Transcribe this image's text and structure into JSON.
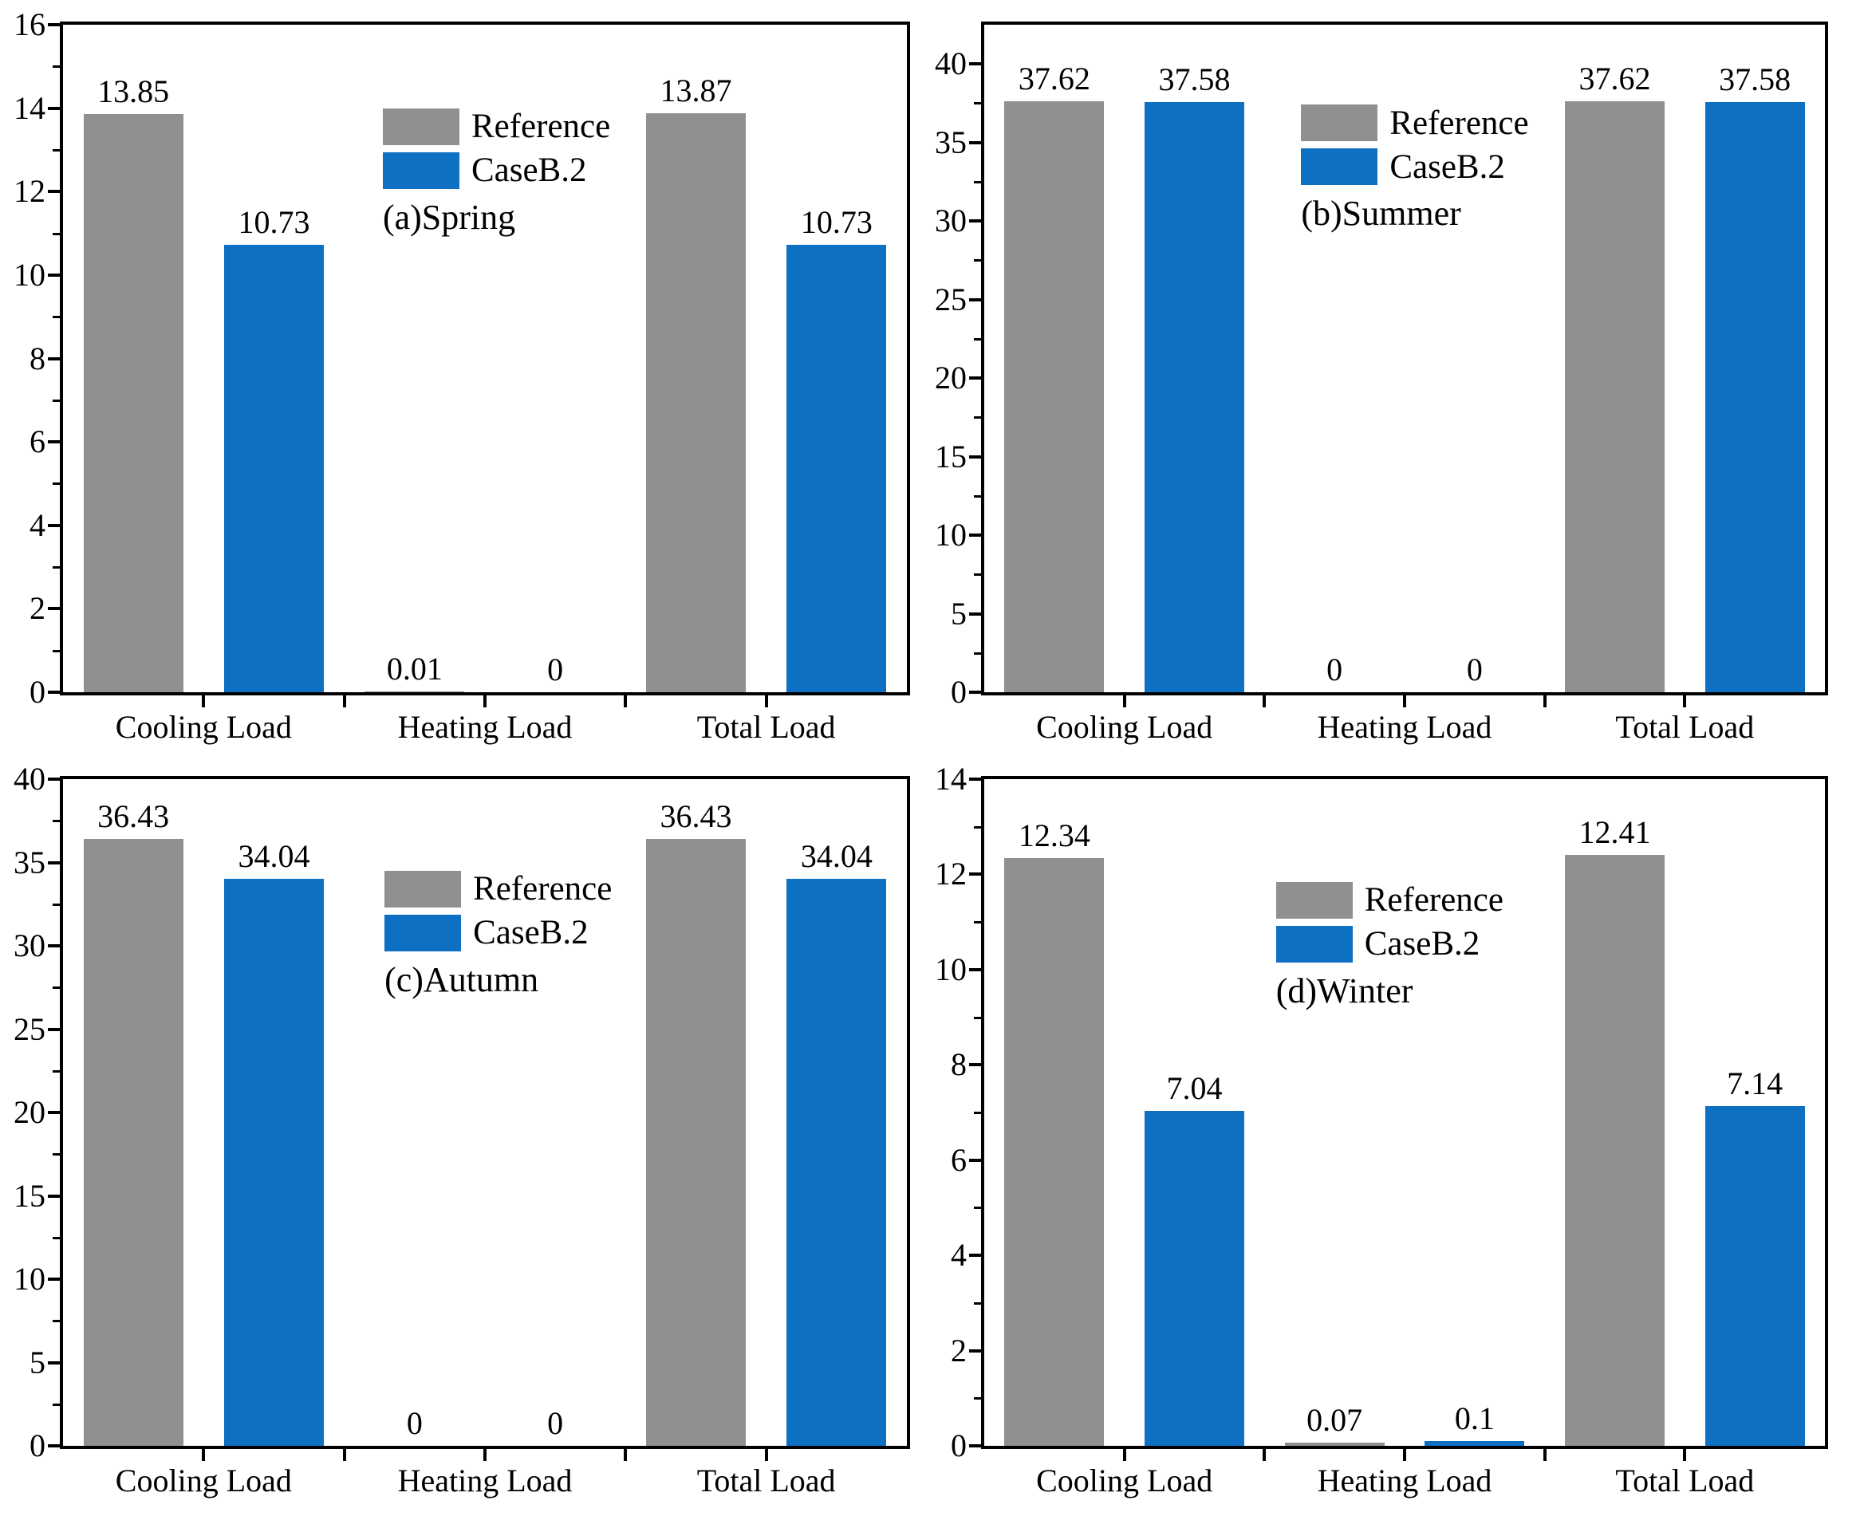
{
  "figure": {
    "background": "#ffffff",
    "text_color": "#000000",
    "axis_color": "#000000"
  },
  "palette": {
    "reference_gray": "#909090",
    "caseb2_blue": "#0d70c2"
  },
  "chart_data": [
    {
      "id": "a",
      "type": "bar",
      "tag": "(a)Spring",
      "categories": [
        "Cooling Load",
        "Heating Load",
        "Total Load"
      ],
      "series": [
        {
          "name": "Reference",
          "color": "#909090",
          "values": [
            13.85,
            0.01,
            13.87
          ],
          "labels": [
            "13.85",
            "0.01",
            "13.87"
          ]
        },
        {
          "name": "CaseB.2",
          "color": "#0d70c2",
          "values": [
            10.73,
            0,
            10.73
          ],
          "labels": [
            "10.73",
            "0",
            "10.73"
          ]
        }
      ],
      "yticks": [
        0,
        2,
        4,
        6,
        8,
        10,
        12,
        14,
        16
      ],
      "ylim": [
        0,
        16
      ],
      "legend_position": "inside-top",
      "grid": false
    },
    {
      "id": "b",
      "type": "bar",
      "tag": "(b)Summer",
      "categories": [
        "Cooling Load",
        "Heating Load",
        "Total Load"
      ],
      "series": [
        {
          "name": "Reference",
          "color": "#909090",
          "values": [
            37.62,
            0,
            37.62
          ],
          "labels": [
            "37.62",
            "0",
            "37.62"
          ]
        },
        {
          "name": "CaseB.2",
          "color": "#0d70c2",
          "values": [
            37.58,
            0,
            37.58
          ],
          "labels": [
            "37.58",
            "0",
            "37.58"
          ]
        }
      ],
      "yticks": [
        0,
        5,
        10,
        15,
        20,
        25,
        30,
        35,
        40
      ],
      "ylim": [
        0,
        42.5
      ],
      "legend_position": "inside-top",
      "grid": false
    },
    {
      "id": "c",
      "type": "bar",
      "tag": "(c)Autumn",
      "categories": [
        "Cooling Load",
        "Heating Load",
        "Total Load"
      ],
      "series": [
        {
          "name": "Reference",
          "color": "#909090",
          "values": [
            36.43,
            0,
            36.43
          ],
          "labels": [
            "36.43",
            "0",
            "36.43"
          ]
        },
        {
          "name": "CaseB.2",
          "color": "#0d70c2",
          "values": [
            34.04,
            0,
            34.04
          ],
          "labels": [
            "34.04",
            "0",
            "34.04"
          ]
        }
      ],
      "yticks": [
        0,
        5,
        10,
        15,
        20,
        25,
        30,
        35,
        40
      ],
      "ylim": [
        0,
        40
      ],
      "legend_position": "inside-top",
      "grid": false
    },
    {
      "id": "d",
      "type": "bar",
      "tag": "(d)Winter",
      "categories": [
        "Cooling Load",
        "Heating Load",
        "Total Load"
      ],
      "series": [
        {
          "name": "Reference",
          "color": "#909090",
          "values": [
            12.34,
            0.07,
            12.41
          ],
          "labels": [
            "12.34",
            "0.07",
            "12.41"
          ]
        },
        {
          "name": "CaseB.2",
          "color": "#0d70c2",
          "values": [
            7.04,
            0.1,
            7.14
          ],
          "labels": [
            "7.04",
            "0.1",
            "7.14"
          ]
        }
      ],
      "yticks": [
        0,
        2,
        4,
        6,
        8,
        10,
        12,
        14
      ],
      "ylim": [
        0,
        14
      ],
      "legend_position": "inside-top",
      "grid": false
    }
  ]
}
